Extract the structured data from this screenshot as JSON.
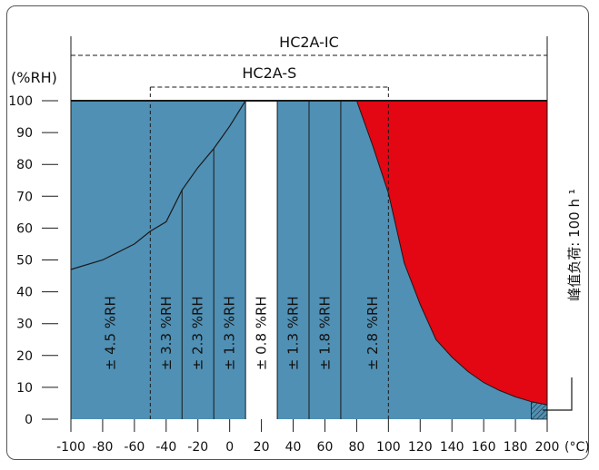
{
  "chart_data": {
    "type": "area",
    "xlim": [
      -100,
      200
    ],
    "ylim": [
      0,
      100
    ],
    "x_ticks": [
      -100,
      -80,
      -60,
      -40,
      -20,
      0,
      20,
      40,
      60,
      80,
      100,
      120,
      140,
      160,
      180,
      200
    ],
    "y_ticks": [
      0,
      10,
      20,
      30,
      40,
      50,
      60,
      70,
      80,
      90,
      100
    ],
    "x_unit": "(°C)",
    "y_unit": "(%RH)",
    "colors": {
      "region": "#5090b4",
      "peak": "#e30613",
      "center": "#ffffff",
      "lines": "#1a1a1a"
    },
    "ranges": [
      {
        "label": "HC2A-IC",
        "x": [
          -100,
          200
        ]
      },
      {
        "label": "HC2A-S",
        "x": [
          -50,
          100
        ]
      }
    ],
    "lower_boundary": [
      [
        -100,
        47
      ],
      [
        -80,
        50
      ],
      [
        -60,
        55
      ],
      [
        -50,
        59
      ],
      [
        -40,
        62
      ],
      [
        -30,
        72
      ],
      [
        -20,
        79
      ],
      [
        -10,
        85
      ],
      [
        0,
        92
      ],
      [
        10,
        100
      ]
    ],
    "peak_boundary": [
      [
        80,
        100
      ],
      [
        90,
        86
      ],
      [
        100,
        71
      ],
      [
        105,
        60
      ],
      [
        110,
        49
      ],
      [
        120,
        36
      ],
      [
        130,
        25
      ],
      [
        140,
        19.5
      ],
      [
        150,
        15
      ],
      [
        160,
        11.5
      ],
      [
        170,
        9
      ],
      [
        180,
        7
      ],
      [
        190,
        5.5
      ],
      [
        200,
        4.5
      ]
    ],
    "dividers": [
      {
        "x": -30,
        "y": [
          0,
          72
        ]
      },
      {
        "x": -10,
        "y": [
          0,
          85
        ]
      },
      {
        "x": 10,
        "y": [
          0,
          100
        ]
      },
      {
        "x": 30,
        "y": [
          0,
          100
        ]
      },
      {
        "x": 50,
        "y": [
          0,
          100
        ]
      },
      {
        "x": 70,
        "y": [
          0,
          100
        ]
      },
      {
        "x": -50,
        "y": [
          0,
          100
        ],
        "dashed": true
      },
      {
        "x": 100,
        "y": [
          0,
          100
        ],
        "dashed": true
      }
    ],
    "white_band": [
      10,
      30
    ],
    "accuracy_labels": [
      {
        "text": "± 4.5 %RH",
        "x": -75,
        "y": 27
      },
      {
        "text": "± 3.3 %RH",
        "x": -40,
        "y": 27
      },
      {
        "text": "± 2.3 %RH",
        "x": -20,
        "y": 27
      },
      {
        "text": "± 1.3 %RH",
        "x": 0,
        "y": 27
      },
      {
        "text": "± 0.8 %RH",
        "x": 20,
        "y": 27
      },
      {
        "text": "± 1.3 %RH",
        "x": 40,
        "y": 27
      },
      {
        "text": "± 1.8 %RH",
        "x": 60,
        "y": 27
      },
      {
        "text": "± 2.8 %RH",
        "x": 90,
        "y": 27
      }
    ],
    "peak_label": "峰值负荷: 100 h ¹"
  }
}
